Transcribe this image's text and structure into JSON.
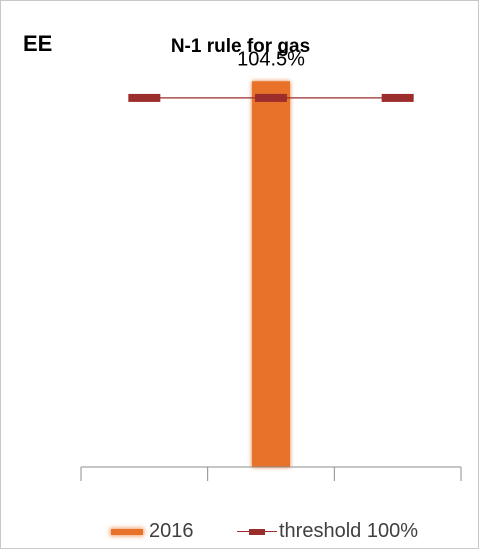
{
  "header": {
    "country": "EE"
  },
  "chart_data": {
    "type": "bar",
    "title": "N-1 rule for gas",
    "categories": [
      "",
      "",
      ""
    ],
    "series": [
      {
        "name": "2016",
        "values": [
          null,
          104.5,
          null
        ],
        "color": "#e8722a"
      },
      {
        "name": "threshold 100%",
        "type": "line",
        "values": [
          100,
          100,
          100
        ],
        "color": "#9b2d2d"
      }
    ],
    "data_labels": [
      "104.5%"
    ],
    "ylim": [
      0,
      110
    ],
    "grid": false,
    "legend": "bottom"
  }
}
